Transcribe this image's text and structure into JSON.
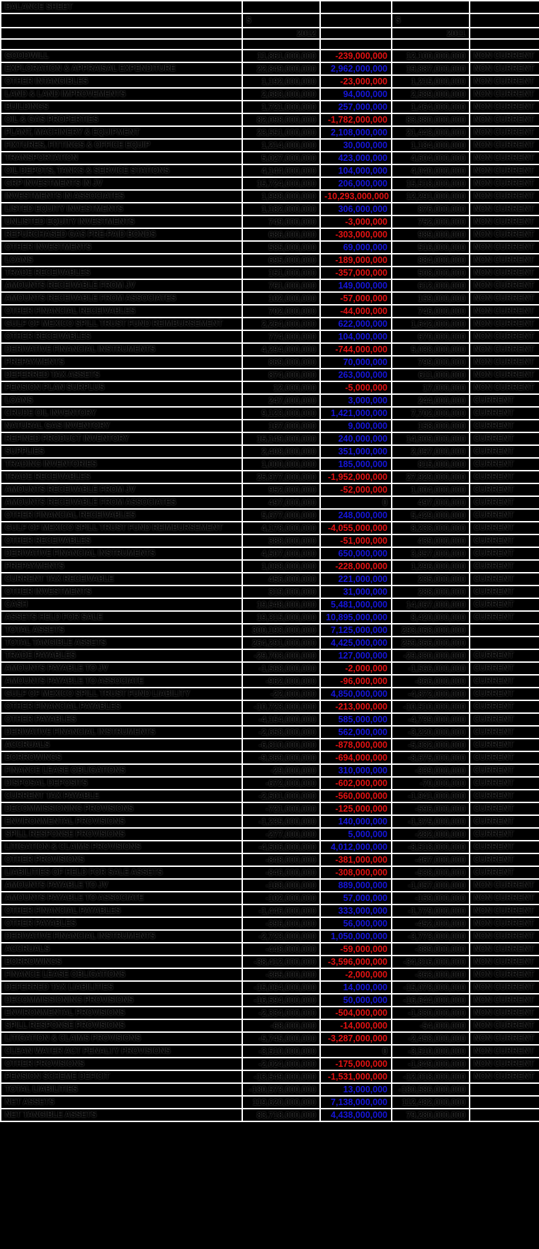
{
  "title": "BALANCE SHEET",
  "currency_symbol": "$",
  "year_left": "2012",
  "year_right": "2011",
  "colors": {
    "background": "#000000",
    "gridline": "#ffffff",
    "text": "#000000",
    "positive_diff": "#1616d9",
    "negative_diff": "#e21212"
  },
  "columns": [
    "",
    "2012",
    "DIFF",
    "2011",
    "CATEGORY"
  ],
  "rows": [
    {
      "label": "GOODWILL",
      "v2012": "11,861,000,000",
      "diff": "-239,000,000",
      "v2011": "12,100,000,000",
      "cat": "NON CURRENT"
    },
    {
      "label": "EXPLORATION & APPRAISAL EXPENDITURE",
      "v2012": "22,849,000,000",
      "diff": "2,962,000,000",
      "v2011": "19,887,000,000",
      "cat": "NON CURRENT"
    },
    {
      "label": "OTHER INTANGIBLES",
      "v2012": "1,192,000,000",
      "diff": "-23,000,000",
      "v2011": "1,215,000,000",
      "cat": "NON CURRENT"
    },
    {
      "label": "LAND & LAND IMPROVEMENTS",
      "v2012": "2,683,000,000",
      "diff": "94,000,000",
      "v2011": "2,589,000,000",
      "cat": "NON CURRENT"
    },
    {
      "label": "BUILDINGS",
      "v2012": "1,721,000,000",
      "diff": "257,000,000",
      "v2011": "1,464,000,000",
      "cat": "NON CURRENT"
    },
    {
      "label": "OIL & GAS PROPERTIES",
      "v2012": "82,098,000,000",
      "diff": "-1,782,000,000",
      "v2011": "83,880,000,000",
      "cat": "NON CURRENT"
    },
    {
      "label": "PLANT, MACHINERY & EQUIPMENT",
      "v2012": "23,551,000,000",
      "diff": "2,108,000,000",
      "v2011": "21,443,000,000",
      "cat": "NON CURRENT"
    },
    {
      "label": "FIXTURES, FITTINGS & OFFICE EQUIP",
      "v2012": "1,214,000,000",
      "diff": "30,000,000",
      "v2011": "1,184,000,000",
      "cat": "NON CURRENT"
    },
    {
      "label": "TRANSPORTATION",
      "v2012": "5,027,000,000",
      "diff": "423,000,000",
      "v2011": "4,604,000,000",
      "cat": "NON CURRENT"
    },
    {
      "label": "OIL DEPOTS, TANKS & SERVICE STATIONS",
      "v2012": "4,144,000,000",
      "diff": "104,000,000",
      "v2011": "4,040,000,000",
      "cat": "NON CURRENT"
    },
    {
      "label": "GRP INVESTMENTS IN JV",
      "v2012": "15,724,000,000",
      "diff": "206,000,000",
      "v2011": "15,518,000,000",
      "cat": "NON CURRENT"
    },
    {
      "label": "INVESTMENTS IN ASSOCIATES",
      "v2012": "1,998,000,000",
      "diff": "-10,293,000,000",
      "v2011": "12,291,000,000",
      "cat": "NON CURRENT"
    },
    {
      "label": "LISTED EQUITY INVESTMENTS",
      "v2012": "1,182,000,000",
      "diff": "306,000,000",
      "v2011": "876,000,000",
      "cat": "NON CURRENT"
    },
    {
      "label": "UNLISTED EQUITY INVESTMENTS",
      "v2012": "749,000,000",
      "diff": "-3,000,000",
      "v2011": "752,000,000",
      "cat": "NON CURRENT"
    },
    {
      "label": "REPURCHASED GAS PRE-PAID BONDS",
      "v2012": "686,000,000",
      "diff": "-303,000,000",
      "v2011": "989,000,000",
      "cat": "NON CURRENT"
    },
    {
      "label": "OTHER INVESTMENTS",
      "v2012": "585,000,000",
      "diff": "69,000,000",
      "v2011": "516,000,000",
      "cat": "NON CURRENT"
    },
    {
      "label": "LOANS",
      "v2012": "695,000,000",
      "diff": "-189,000,000",
      "v2011": "884,000,000",
      "cat": "NON CURRENT"
    },
    {
      "label": "TRADE RECEIVABLES",
      "v2012": "151,000,000",
      "diff": "-357,000,000",
      "v2011": "508,000,000",
      "cat": "NON CURRENT"
    },
    {
      "label": "AMOUNTS RECEIVABLE FROM JV",
      "v2012": "761,000,000",
      "diff": "149,000,000",
      "v2011": "612,000,000",
      "cat": "NON CURRENT"
    },
    {
      "label": "AMOUNTS RECEIVABLE FROM ASSOCIATES",
      "v2012": "102,000,000",
      "diff": "-57,000,000",
      "v2011": "159,000,000",
      "cat": "NON CURRENT"
    },
    {
      "label": "OTHER FINANCIAL RECEIVABLES",
      "v2012": "702,000,000",
      "diff": "-44,000,000",
      "v2011": "746,000,000",
      "cat": "NON CURRENT"
    },
    {
      "label": "GULF OF MEXICO SPILL TRUST FUND REIMBURSEMENT",
      "v2012": "2,264,000,000",
      "diff": "622,000,000",
      "v2011": "1,642,000,000",
      "cat": "NON CURRENT"
    },
    {
      "label": "OTHER RECEIVABLES",
      "v2012": "774,000,000",
      "diff": "104,000,000",
      "v2011": "670,000,000",
      "cat": "NON CURRENT"
    },
    {
      "label": "DERIVATIVE FINANCIAL INSTRUMENTS",
      "v2012": "4,294,000,000",
      "diff": "-744,000,000",
      "v2011": "5,038,000,000",
      "cat": "NON CURRENT"
    },
    {
      "label": "PREPAYMENTS",
      "v2012": "869,000,000",
      "diff": "70,000,000",
      "v2011": "799,000,000",
      "cat": "NON CURRENT"
    },
    {
      "label": "DEFERRED TAX ASSETS",
      "v2012": "874,000,000",
      "diff": "263,000,000",
      "v2011": "611,000,000",
      "cat": "NON CURRENT"
    },
    {
      "label": "PENSION PLAN SURPLUS",
      "v2012": "12,000,000",
      "diff": "-5,000,000",
      "v2011": "17,000,000",
      "cat": "NON CURRENT"
    },
    {
      "label": "LOANS",
      "v2012": "247,000,000",
      "diff": "3,000,000",
      "v2011": "244,000,000",
      "cat": "CURRENT"
    },
    {
      "label": "CRUDE OIL INVENTORY",
      "v2012": "9,123,000,000",
      "diff": "1,421,000,000",
      "v2011": "7,702,000,000",
      "cat": "CURRENT"
    },
    {
      "label": "NATURAL GAS INVENTORY",
      "v2012": "167,000,000",
      "diff": "9,000,000",
      "v2011": "158,000,000",
      "cat": "CURRENT"
    },
    {
      "label": "REFINED PRODUCT INVENTORY",
      "v2012": "15,149,000,000",
      "diff": "240,000,000",
      "v2011": "14,909,000,000",
      "cat": "CURRENT"
    },
    {
      "label": "SUPPLIES",
      "v2012": "2,408,000,000",
      "diff": "351,000,000",
      "v2011": "2,057,000,000",
      "cat": "CURRENT"
    },
    {
      "label": "TRADING INVENTORIES",
      "v2012": "1,000,000,000",
      "diff": "185,000,000",
      "v2011": "815,000,000",
      "cat": "CURRENT"
    },
    {
      "label": "TRADE RECEIVABLES",
      "v2012": "25,977,000,000",
      "diff": "-1,952,000,000",
      "v2011": "27,929,000,000",
      "cat": "CURRENT"
    },
    {
      "label": "AMOUNTS RECEIVABLE FROM JV",
      "v2012": "952,000,000",
      "diff": "-52,000,000",
      "v2011": "1,004,000,000",
      "cat": "CURRENT"
    },
    {
      "label": "AMOUNTS RECEIVABLE FROM ASSOCIATES",
      "v2012": "497,000,000",
      "diff": "0",
      "v2011": "497,000,000",
      "cat": "CURRENT"
    },
    {
      "label": "OTHER FINANCIAL RECEIVABLES",
      "v2012": "5,677,000,000",
      "diff": "248,000,000",
      "v2011": "5,429,000,000",
      "cat": "CURRENT"
    },
    {
      "label": "GULF OF MEXICO SPILL TRUST FUND REIMBURSEMENT",
      "v2012": "4,178,000,000",
      "diff": "-4,055,000,000",
      "v2011": "8,233,000,000",
      "cat": "CURRENT"
    },
    {
      "label": "OTHER RECEIVABLES",
      "v2012": "388,000,000",
      "diff": "-51,000,000",
      "v2011": "439,000,000",
      "cat": "CURRENT"
    },
    {
      "label": "DERIVATIVE FINANCIAL INSTRUMENTS",
      "v2012": "4,507,000,000",
      "diff": "650,000,000",
      "v2011": "3,857,000,000",
      "cat": "CURRENT"
    },
    {
      "label": "PREPAYMENTS",
      "v2012": "1,068,000,000",
      "diff": "-228,000,000",
      "v2011": "1,296,000,000",
      "cat": "CURRENT"
    },
    {
      "label": "CURRENT TAX RECEIVABLE",
      "v2012": "456,000,000",
      "diff": "221,000,000",
      "v2011": "235,000,000",
      "cat": "CURRENT"
    },
    {
      "label": "OTHER INVESTMENTS",
      "v2012": "319,000,000",
      "diff": "31,000,000",
      "v2011": "288,000,000",
      "cat": "CURRENT"
    },
    {
      "label": "CASH",
      "v2012": "19,548,000,000",
      "diff": "5,481,000,000",
      "v2011": "14,067,000,000",
      "cat": "CURRENT"
    },
    {
      "label": "ASSETS HELD FOR SALE",
      "v2012": "19,315,000,000",
      "diff": "10,895,000,000",
      "v2011": "8,420,000,000",
      "cat": "CURRENT"
    },
    {
      "label": "TOTAL ASSETS",
      "v2012": "300,193,000,000",
      "diff": "7,125,000,000",
      "v2011": "293,068,000,000",
      "cat": ""
    },
    {
      "label": "TOTAL TANGIBLE ASSETS",
      "v2012": "264,291,000,000",
      "diff": "4,425,000,000",
      "v2011": "259,866,000,000",
      "cat": ""
    },
    {
      "label": "TRADE PAYABLES",
      "v2012": "-29,703,000,000",
      "diff": "127,000,000",
      "v2011": "-29,830,000,000",
      "cat": "CURRENT"
    },
    {
      "label": "AMOUNTS PAYABLE TO JV",
      "v2012": "-1,568,000,000",
      "diff": "-2,000,000",
      "v2011": "-1,566,000,000",
      "cat": "CURRENT"
    },
    {
      "label": "AMOUNTS PAYABLE TO ASSOCIATE",
      "v2012": "-962,000,000",
      "diff": "-96,000,000",
      "v2011": "-866,000,000",
      "cat": "CURRENT"
    },
    {
      "label": "GULF OF MEXICO SPILL TRUST FUND LIABILITY",
      "v2012": "-22,000,000",
      "diff": "4,850,000,000",
      "v2011": "-4,872,000,000",
      "cat": "CURRENT"
    },
    {
      "label": "OTHER FINANCIAL PAYABLES",
      "v2012": "-10,723,000,000",
      "diff": "-213,000,000",
      "v2011": "-10,510,000,000",
      "cat": "CURRENT"
    },
    {
      "label": "OTHER PAYABLES",
      "v2012": "-4,154,000,000",
      "diff": "585,000,000",
      "v2011": "-4,739,000,000",
      "cat": "CURRENT"
    },
    {
      "label": "DERIVATIVE FINANCIAL INSTRUMENTS",
      "v2012": "-2,658,000,000",
      "diff": "562,000,000",
      "v2011": "-3,220,000,000",
      "cat": "CURRENT"
    },
    {
      "label": "ACCRUALS",
      "v2012": "-6,810,000,000",
      "diff": "-878,000,000",
      "v2011": "-5,932,000,000",
      "cat": "CURRENT"
    },
    {
      "label": "BORROWINGS",
      "v2012": "-9,369,000,000",
      "diff": "-694,000,000",
      "v2011": "-8,675,000,000",
      "cat": "CURRENT"
    },
    {
      "label": "FINANCE LEASE OBLIGATIONS",
      "v2012": "-29,000,000",
      "diff": "310,000,000",
      "v2011": "-339,000,000",
      "cat": "CURRENT"
    },
    {
      "label": "DISPOSAL DEPOSITS",
      "v2012": "-672,000,000",
      "diff": "-602,000,000",
      "v2011": "-70,000,000",
      "cat": "CURRENT"
    },
    {
      "label": "CURRENT TAX PAYABLE",
      "v2012": "-2,501,000,000",
      "diff": "-560,000,000",
      "v2011": "-1,941,000,000",
      "cat": "CURRENT"
    },
    {
      "label": "DECOMMISSIONING PROVISIONS",
      "v2012": "-721,000,000",
      "diff": "-125,000,000",
      "v2011": "-596,000,000",
      "cat": "CURRENT"
    },
    {
      "label": "ENVIRONMENTAL PROVISIONS",
      "v2012": "-1,235,000,000",
      "diff": "140,000,000",
      "v2011": "-1,375,000,000",
      "cat": "CURRENT"
    },
    {
      "label": "SPILL RESPONSE PROVISIONS",
      "v2012": "-277,000,000",
      "diff": "5,000,000",
      "v2011": "-282,000,000",
      "cat": "CURRENT"
    },
    {
      "label": "LITIGATION & CLAIMS PROVISIONS",
      "v2012": "-4,506,000,000",
      "diff": "4,012,000,000",
      "v2011": "-8,518,000,000",
      "cat": "CURRENT"
    },
    {
      "label": "OTHER PROVISIONS",
      "v2012": "-848,000,000",
      "diff": "-381,000,000",
      "v2011": "-467,000,000",
      "cat": "CURRENT"
    },
    {
      "label": "LIABILITIES OF HELD FOR SALE ASSETS",
      "v2012": "-846,000,000",
      "diff": "-308,000,000",
      "v2011": "-538,000,000",
      "cat": "CURRENT"
    },
    {
      "label": "AMOUNTS PAYABLE TO JV",
      "v2012": "-168,000,000",
      "diff": "889,000,000",
      "v2011": "-1,057,000,000",
      "cat": "NON CURRENT"
    },
    {
      "label": "AMOUNTS PAYABLE TO ASSOCIATE",
      "v2012": "-102,000,000",
      "diff": "57,000,000",
      "v2011": "-159,000,000",
      "cat": "NON CURRENT"
    },
    {
      "label": "OTHER FINANCIAL PAYABLES",
      "v2012": "-1,446,000,000",
      "diff": "333,000,000",
      "v2011": "-1,779,000,000",
      "cat": "NON CURRENT"
    },
    {
      "label": "OTHER PAYABLES",
      "v2012": "-396,000,000",
      "diff": "56,000,000",
      "v2011": "-452,000,000",
      "cat": "NON CURRENT"
    },
    {
      "label": "DERIVATIVE FINANCIAL INSTRUMENTS",
      "v2012": "-2,723,000,000",
      "diff": "1,050,000,000",
      "v2011": "-3,773,000,000",
      "cat": "NON CURRENT"
    },
    {
      "label": "ACCRUALS",
      "v2012": "-448,000,000",
      "diff": "-59,000,000",
      "v2011": "-389,000,000",
      "cat": "NON CURRENT"
    },
    {
      "label": "BORROWINGS",
      "v2012": "-38,412,000,000",
      "diff": "-3,596,000,000",
      "v2011": "-34,816,000,000",
      "cat": "NON CURRENT"
    },
    {
      "label": "FINANCE LEASE OBLIGATIONS",
      "v2012": "-365,000,000",
      "diff": "-2,000,000",
      "v2011": "-363,000,000",
      "cat": "NON CURRENT"
    },
    {
      "label": "DEFERRED TAX LIABILITIES",
      "v2012": "-15,064,000,000",
      "diff": "14,000,000",
      "v2011": "-15,078,000,000",
      "cat": "NON CURRENT"
    },
    {
      "label": "DECOMMISSIONING PROVISIONS",
      "v2012": "-16,594,000,000",
      "diff": "50,000,000",
      "v2011": "-16,644,000,000",
      "cat": "NON CURRENT"
    },
    {
      "label": "ENVIRONMENTAL PROVISIONS",
      "v2012": "-2,334,000,000",
      "diff": "-504,000,000",
      "v2011": "-1,830,000,000",
      "cat": "NON CURRENT"
    },
    {
      "label": "SPILL RESPONSE PROVISIONS",
      "v2012": "-68,000,000",
      "diff": "-14,000,000",
      "v2011": "-54,000,000",
      "cat": "NON CURRENT"
    },
    {
      "label": "LITIGATION & CLAIMS PROVISIONS",
      "v2012": "-5,745,000,000",
      "diff": "-3,287,000,000",
      "v2011": "-2,458,000,000",
      "cat": "NON CURRENT"
    },
    {
      "label": "CLEAN WATER ACT PENALTY PROVISIONS",
      "v2012": "-3,510,000,000",
      "diff": "0",
      "v2011": "-3,510,000,000",
      "cat": "NON CURRENT"
    },
    {
      "label": "OTHER PROVISIONS",
      "v2012": "-2,024,000,000",
      "diff": "-175,000,000",
      "v2011": "-1,849,000,000",
      "cat": "NON CURRENT"
    },
    {
      "label": "PENSION SCHEME DEFICIT",
      "v2012": "-13,549,000,000",
      "diff": "-1,531,000,000",
      "v2011": "-12,018,000,000",
      "cat": "NON CURRENT"
    },
    {
      "label": "TOTAL LIABILITIES",
      "v2012": "-180,573,000,000",
      "diff": "13,000,000",
      "v2011": "-180,586,000,000",
      "cat": ""
    },
    {
      "label": "NET ASSETS",
      "v2012": "119,620,000,000",
      "diff": "7,138,000,000",
      "v2011": "112,482,000,000",
      "cat": ""
    },
    {
      "label": "NET TANGIBLE ASSETS",
      "v2012": "83,718,000,000",
      "diff": "4,438,000,000",
      "v2011": "79,280,000,000",
      "cat": ""
    }
  ]
}
